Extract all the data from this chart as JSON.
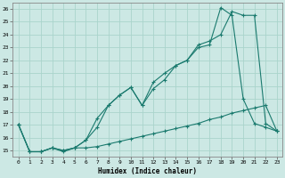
{
  "xlabel": "Humidex (Indice chaleur)",
  "bg_color": "#cce8e4",
  "grid_color": "#aad4cc",
  "line_color": "#1a7a6e",
  "xlim": [
    -0.5,
    23.5
  ],
  "ylim": [
    14.5,
    26.5
  ],
  "xticks": [
    0,
    1,
    2,
    3,
    4,
    5,
    6,
    7,
    8,
    9,
    10,
    11,
    12,
    13,
    14,
    15,
    16,
    17,
    18,
    19,
    20,
    21,
    22,
    23
  ],
  "yticks": [
    15,
    16,
    17,
    18,
    19,
    20,
    21,
    22,
    23,
    24,
    25,
    26
  ],
  "line1_x": [
    0,
    1,
    2,
    3,
    4,
    5,
    6,
    7,
    8,
    9,
    10,
    11,
    12,
    13,
    14,
    15,
    16,
    17,
    18,
    19,
    20,
    21,
    22,
    23
  ],
  "line1_y": [
    17.0,
    14.9,
    14.9,
    15.2,
    14.9,
    15.2,
    15.2,
    15.3,
    15.5,
    15.7,
    15.9,
    16.1,
    16.3,
    16.5,
    16.7,
    16.9,
    17.1,
    17.4,
    17.6,
    17.9,
    18.1,
    18.3,
    18.5,
    16.5
  ],
  "line2_x": [
    0,
    1,
    2,
    3,
    4,
    5,
    6,
    7,
    8,
    9,
    10,
    11,
    12,
    13,
    14,
    15,
    16,
    17,
    18,
    19,
    20,
    21,
    22,
    23
  ],
  "line2_y": [
    17.0,
    14.9,
    14.9,
    15.2,
    15.0,
    15.2,
    15.8,
    17.5,
    18.5,
    19.3,
    19.9,
    18.5,
    20.3,
    21.0,
    21.6,
    22.0,
    23.0,
    23.2,
    26.1,
    25.5,
    19.0,
    17.1,
    16.8,
    16.5
  ],
  "line3_x": [
    0,
    1,
    2,
    3,
    4,
    5,
    6,
    7,
    8,
    9,
    10,
    11,
    12,
    13,
    14,
    15,
    16,
    17,
    18,
    19,
    20,
    21,
    22,
    23
  ],
  "line3_y": [
    17.0,
    14.9,
    14.9,
    15.2,
    15.0,
    15.2,
    15.8,
    16.8,
    18.5,
    19.3,
    19.9,
    18.5,
    19.8,
    20.5,
    21.6,
    22.0,
    23.2,
    23.5,
    24.0,
    25.8,
    25.5,
    25.5,
    17.1,
    16.5
  ]
}
